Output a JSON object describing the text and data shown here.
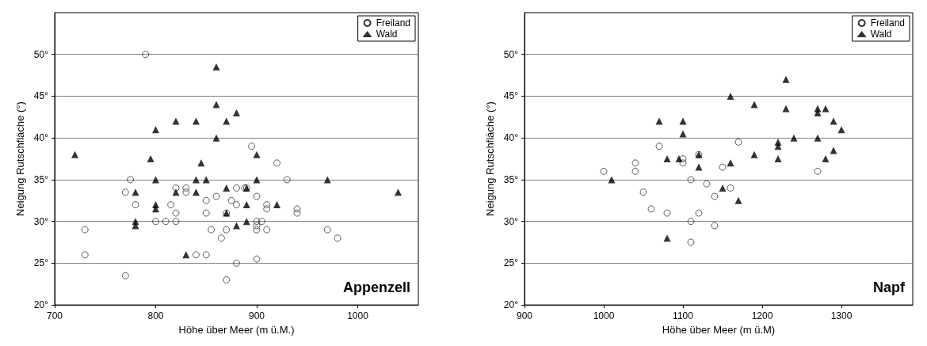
{
  "chart_data": [
    {
      "type": "scatter",
      "xlabel": "Höhe über Meer (m ü.M.)",
      "ylabel": "Neigung Rutschfläche (°)",
      "annotations": [
        "Appenzell"
      ],
      "xlim": [
        700,
        1060
      ],
      "xticks": [
        700,
        800,
        900,
        1000
      ],
      "ylim": [
        20,
        55
      ],
      "yticks": [
        {
          "value": 20,
          "label": "20°"
        },
        {
          "value": 25,
          "label": "25°"
        },
        {
          "value": 30,
          "label": "30°"
        },
        {
          "value": 35,
          "label": "35°"
        },
        {
          "value": 40,
          "label": "40°"
        },
        {
          "value": 45,
          "label": "45°"
        },
        {
          "value": 50,
          "label": "50°"
        }
      ],
      "grid": "y",
      "legend": "top right",
      "series": [
        {
          "name": "Freiland",
          "color": "#000000",
          "marker": "circle",
          "x": [
            790,
            770,
            775,
            730,
            730,
            770,
            780,
            800,
            810,
            815,
            820,
            820,
            820,
            830,
            830,
            850,
            850,
            840,
            850,
            855,
            860,
            865,
            870,
            870,
            870,
            875,
            880,
            880,
            880,
            890,
            895,
            900,
            900,
            900,
            900,
            900,
            905,
            910,
            910,
            910,
            920,
            930,
            940,
            940,
            970,
            980,
            888
          ],
          "values": [
            50,
            33.5,
            35,
            29,
            26,
            23.5,
            32,
            30,
            30,
            32,
            34,
            31,
            30,
            34,
            33.5,
            32.5,
            31,
            26,
            26,
            29,
            33,
            28,
            31,
            29,
            23,
            32.5,
            34,
            32,
            25,
            34,
            39,
            33,
            30,
            29.5,
            29,
            25.5,
            30,
            32,
            31.5,
            29,
            37,
            35,
            31.5,
            31,
            29,
            28,
            34
          ]
        },
        {
          "name": "Wald",
          "color": "#000000",
          "marker": "triangle",
          "x": [
            720,
            780,
            780,
            780,
            795,
            800,
            800,
            800,
            800,
            820,
            820,
            830,
            840,
            840,
            840,
            845,
            850,
            860,
            860,
            860,
            870,
            870,
            870,
            880,
            880,
            890,
            890,
            890,
            900,
            900,
            920,
            970,
            1040
          ],
          "values": [
            38,
            33.5,
            30,
            29.5,
            37.5,
            41,
            35,
            32,
            31.5,
            42,
            33.5,
            26,
            42,
            35,
            33.5,
            37,
            35,
            48.5,
            44,
            40,
            42,
            34,
            31,
            43,
            29.5,
            34,
            32,
            30,
            38,
            35,
            32,
            35,
            33.5
          ]
        }
      ]
    },
    {
      "type": "scatter",
      "xlabel": "Höhe über Meer (m ü.M)",
      "ylabel": "Neigung Rutschfläche (°)",
      "annotations": [
        "Napf"
      ],
      "xlim": [
        900,
        1390
      ],
      "xticks": [
        900,
        1000,
        1100,
        1200,
        1300
      ],
      "ylim": [
        20,
        55
      ],
      "yticks": [
        {
          "value": 20,
          "label": "20°"
        },
        {
          "value": 25,
          "label": "25°"
        },
        {
          "value": 30,
          "label": "30°"
        },
        {
          "value": 35,
          "label": "35°"
        },
        {
          "value": 40,
          "label": "40°"
        },
        {
          "value": 45,
          "label": "45°"
        },
        {
          "value": 50,
          "label": "50°"
        }
      ],
      "grid": "y",
      "legend": "top right",
      "series": [
        {
          "name": "Freiland",
          "color": "#000000",
          "marker": "circle",
          "x": [
            1000,
            1040,
            1040,
            1050,
            1060,
            1070,
            1080,
            1100,
            1100,
            1110,
            1110,
            1110,
            1120,
            1120,
            1130,
            1140,
            1140,
            1150,
            1160,
            1170,
            1270
          ],
          "values": [
            36,
            37,
            36,
            33.5,
            31.5,
            39,
            31,
            37.5,
            37,
            35,
            30,
            27.5,
            38,
            31,
            34.5,
            33,
            29.5,
            36.5,
            34,
            39.5,
            36
          ]
        },
        {
          "name": "Wald",
          "color": "#000000",
          "marker": "triangle",
          "x": [
            1010,
            1070,
            1080,
            1080,
            1095,
            1100,
            1100,
            1120,
            1120,
            1150,
            1160,
            1160,
            1170,
            1190,
            1190,
            1220,
            1220,
            1220,
            1230,
            1230,
            1240,
            1270,
            1270,
            1270,
            1280,
            1280,
            1290,
            1290,
            1300
          ],
          "values": [
            35,
            42,
            37.5,
            28,
            37.5,
            42,
            40.5,
            38,
            36.5,
            34,
            37,
            45,
            32.5,
            44,
            38,
            39.5,
            39,
            37.5,
            47,
            43.5,
            40,
            43.5,
            43,
            40,
            43.5,
            37.5,
            42,
            38.5,
            41
          ]
        }
      ]
    }
  ]
}
